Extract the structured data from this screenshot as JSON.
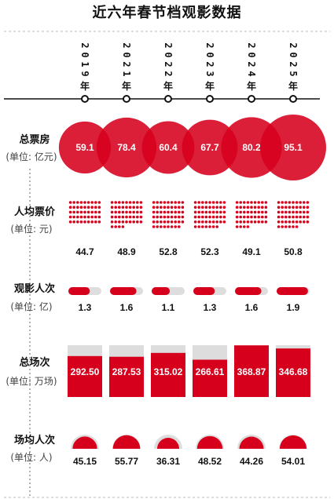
{
  "title": "近六年春节档观影数据",
  "colors": {
    "red": "#d6001c",
    "dark_red": "#a30012",
    "gray": "#dddddd",
    "text": "#111111"
  },
  "rows": [
    {
      "title": "总票房",
      "unit": "(单位: 亿元)"
    },
    {
      "title": "人均票价",
      "unit": "(单位: 元)"
    },
    {
      "title": "观影人次",
      "unit": "(单位: 亿)"
    },
    {
      "title": "总场次",
      "unit": "(单位: 万场)"
    },
    {
      "title": "场均人次",
      "unit": "(单位: 人)"
    }
  ],
  "chart_data": {
    "type": "table",
    "title": "近六年春节档观影数据",
    "categories": [
      "2019年",
      "2021年",
      "2022年",
      "2023年",
      "2024年",
      "2025年"
    ],
    "series": [
      {
        "name": "总票房",
        "unit": "亿元",
        "values": [
          59.1,
          78.4,
          60.4,
          67.7,
          80.2,
          95.1
        ]
      },
      {
        "name": "人均票价",
        "unit": "元",
        "values": [
          44.7,
          48.9,
          52.8,
          52.3,
          49.1,
          50.8
        ]
      },
      {
        "name": "观影人次",
        "unit": "亿",
        "values": [
          1.3,
          1.6,
          1.1,
          1.3,
          1.6,
          1.9
        ]
      },
      {
        "name": "总场次",
        "unit": "万场",
        "values": [
          "292.50",
          "287.53",
          "315.02",
          "266.61",
          "368.87",
          "346.68"
        ]
      },
      {
        "name": "场均人次",
        "unit": "人",
        "values": [
          45.15,
          55.77,
          36.31,
          48.52,
          44.26,
          54.01
        ]
      }
    ]
  }
}
